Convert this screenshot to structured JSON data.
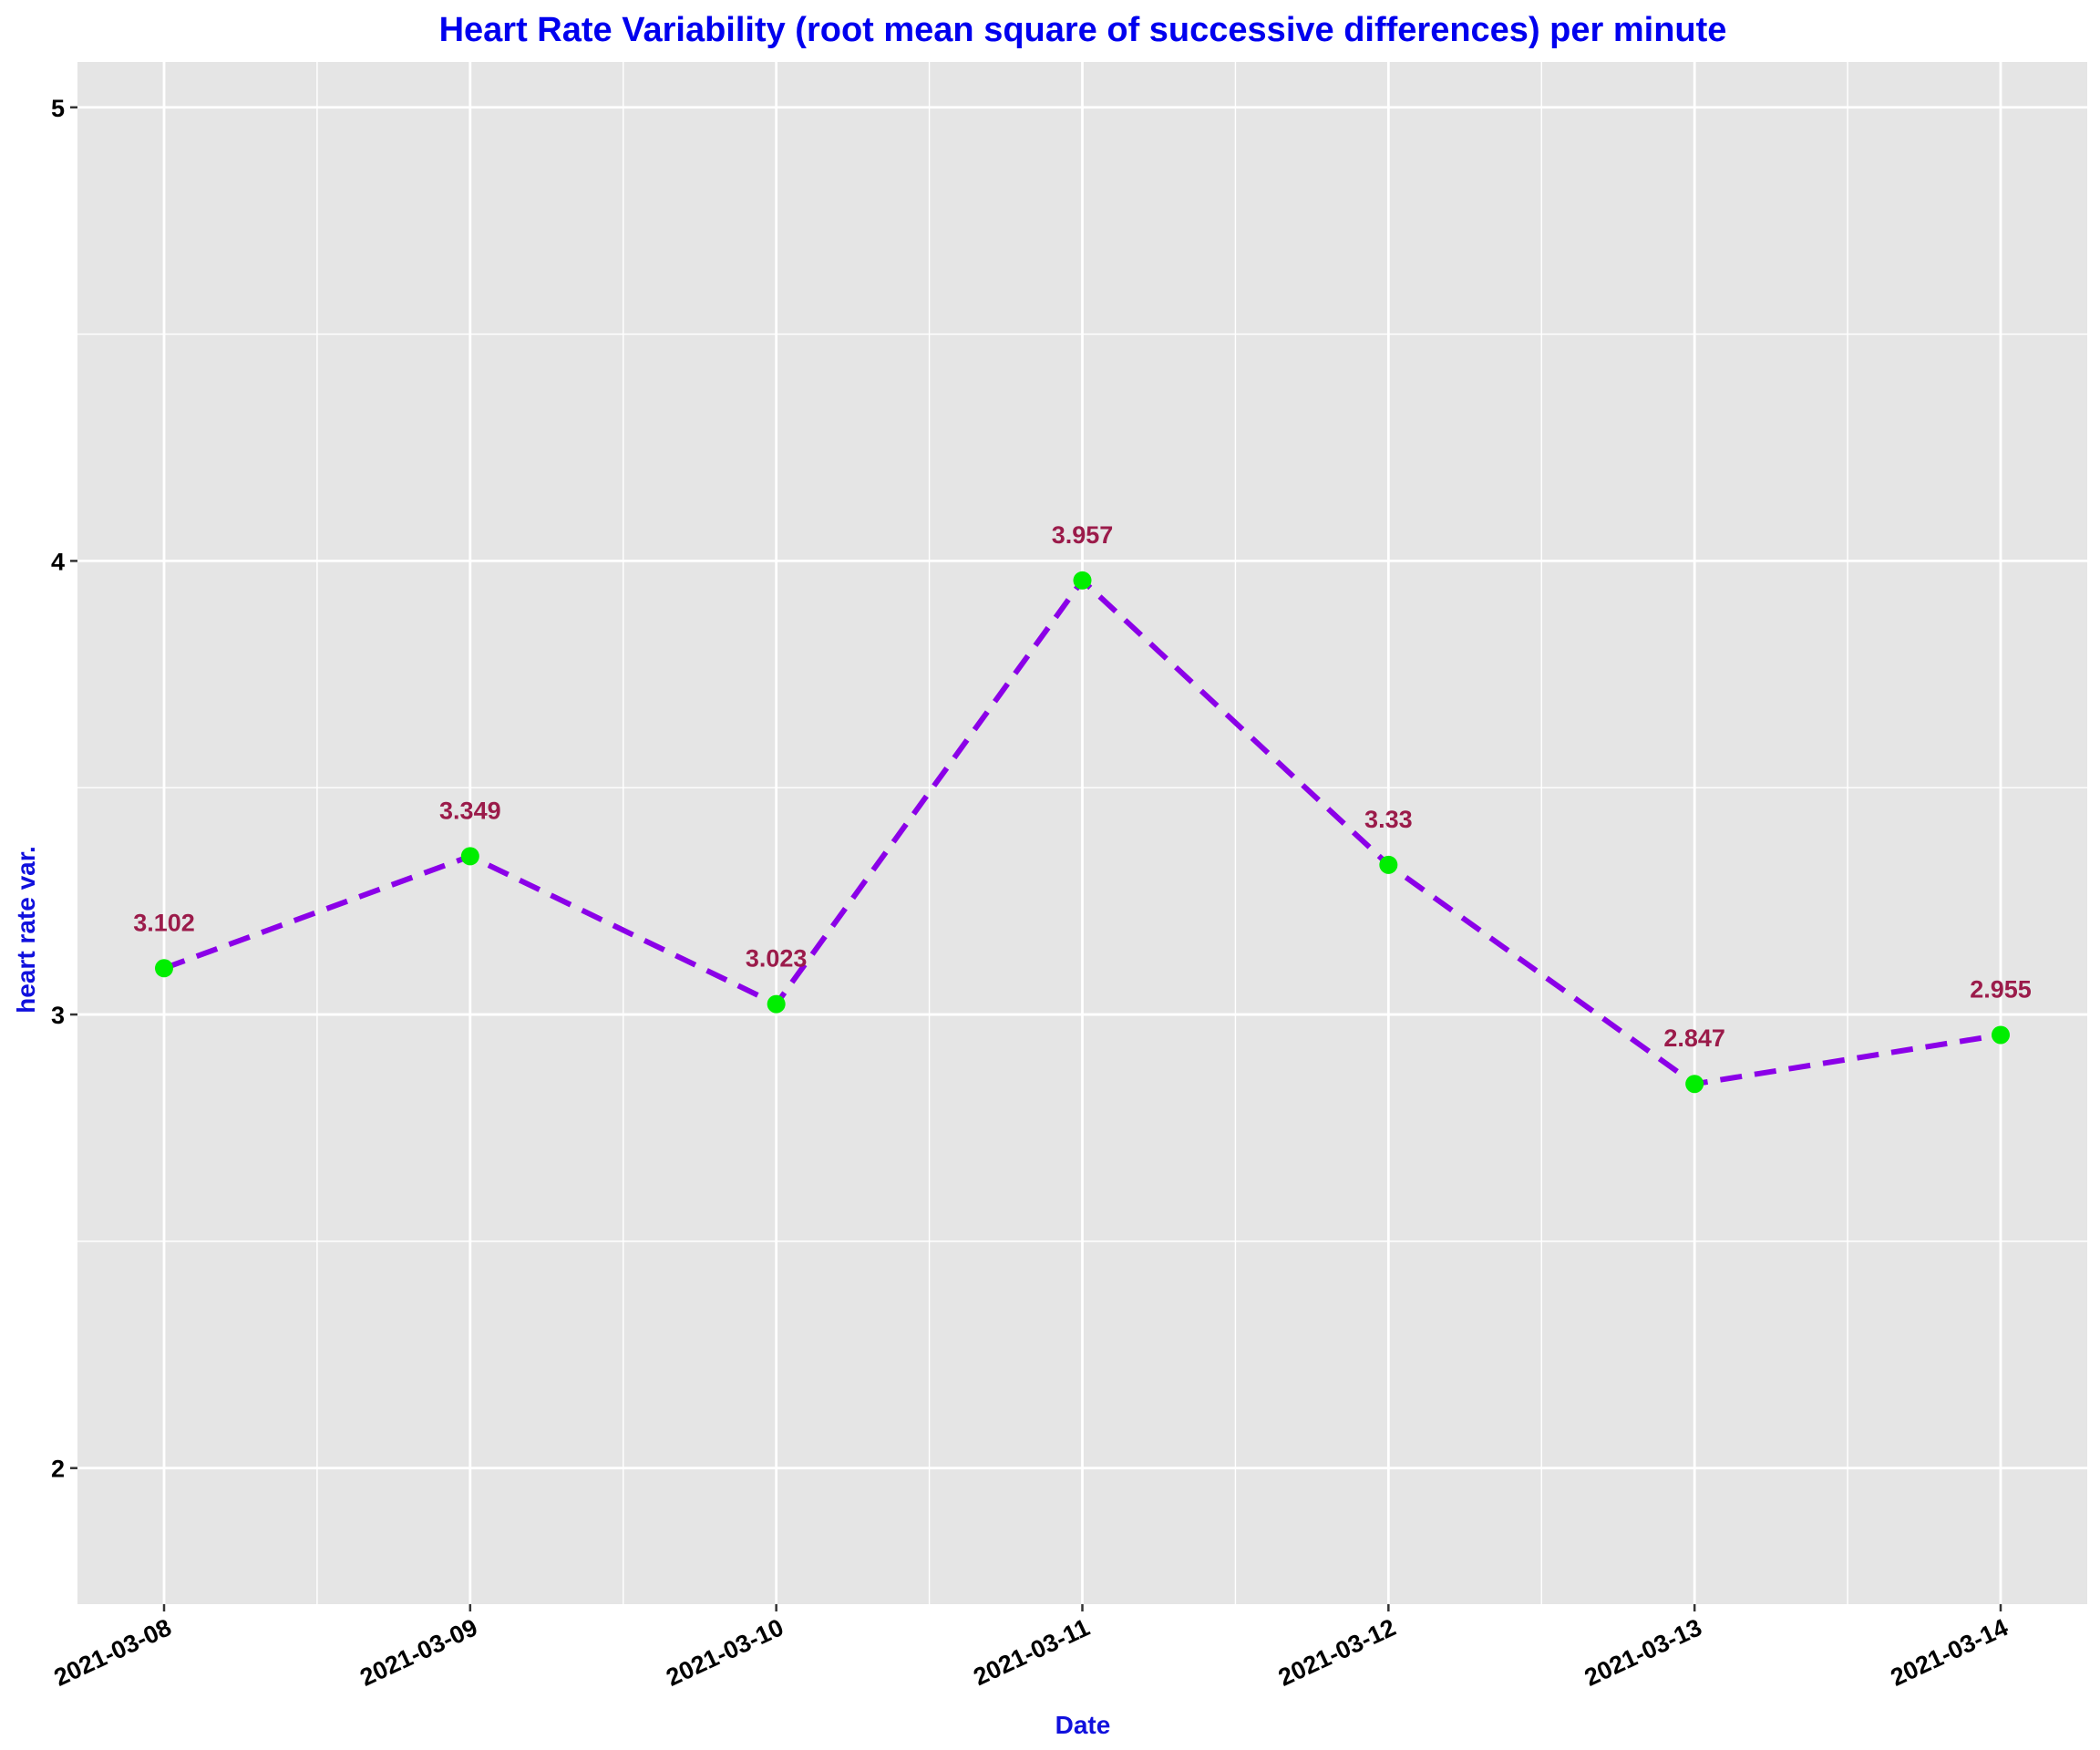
{
  "chart_data": {
    "type": "line",
    "title": "Heart Rate Variability (root mean square of successive differences) per minute",
    "xlabel": "Date",
    "ylabel": "heart rate var.",
    "x": [
      "2021-03-08",
      "2021-03-09",
      "2021-03-10",
      "2021-03-11",
      "2021-03-12",
      "2021-03-13",
      "2021-03-14"
    ],
    "series": [
      {
        "values": [
          3.102,
          3.349,
          3.023,
          3.957,
          3.33,
          2.847,
          2.955
        ],
        "labels": [
          "3.102",
          "3.349",
          "3.023",
          "3.957",
          "3.33",
          "2.847",
          "2.955"
        ],
        "line_style": "dashed",
        "line_color": "#8B00E8",
        "marker_color": "#00EE00"
      }
    ],
    "ylim": [
      1.7,
      5.1
    ],
    "yticks": [
      2,
      3,
      4,
      5
    ],
    "ytick_labels": [
      "2",
      "3",
      "4",
      "5"
    ],
    "grid": true,
    "legend": "none",
    "colors": {
      "title": "#0000EE",
      "axis_title": "#1010DD",
      "data_label": "#9B1B4A",
      "panel_background": "#E5E5E5",
      "gridline": "#FFFFFF"
    }
  }
}
